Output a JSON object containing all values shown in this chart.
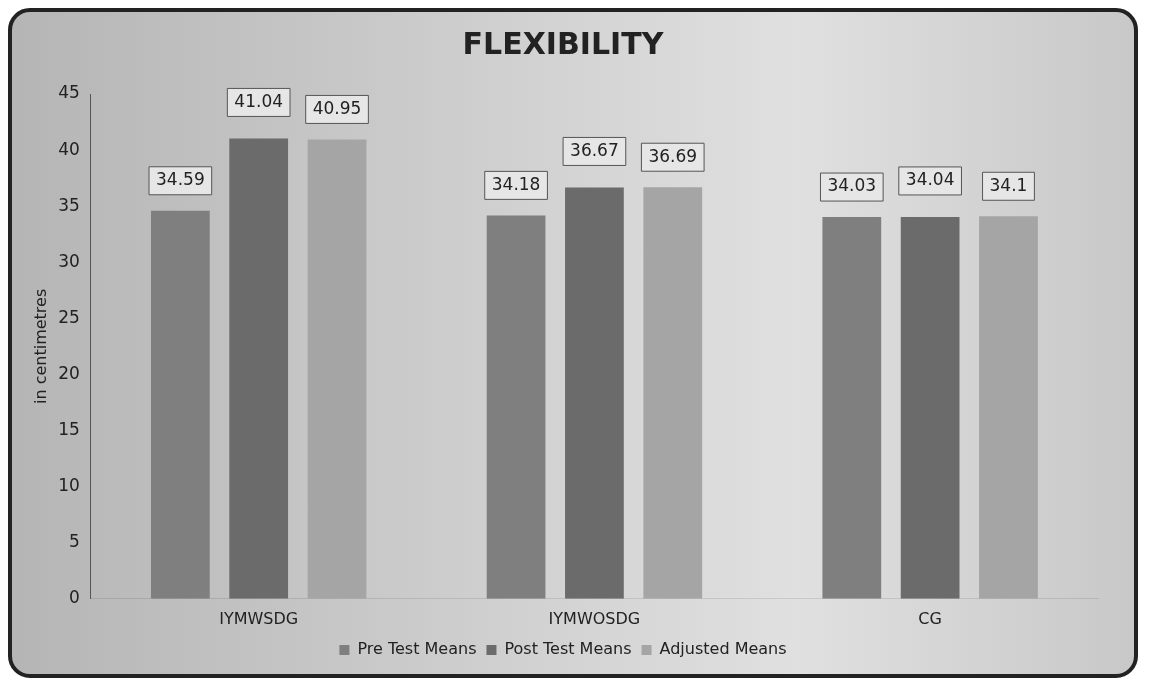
{
  "chart_data": {
    "type": "bar",
    "title": "FLEXIBILITY",
    "ylabel": "in centimetres",
    "categories": [
      "IYMWSDG",
      "IYMWOSDG",
      "CG"
    ],
    "series": [
      {
        "name": "Pre Test Means",
        "color": "#7f7f7f",
        "values": [
          34.59,
          34.18,
          34.03
        ]
      },
      {
        "name": "Post Test Means",
        "color": "#6b6b6b",
        "values": [
          41.04,
          36.67,
          34.04
        ]
      },
      {
        "name": "Adjusted Means",
        "color": "#a5a5a5",
        "values": [
          40.95,
          36.69,
          34.1
        ]
      }
    ],
    "ylim": [
      0,
      45
    ],
    "yticks": [
      0,
      5,
      10,
      15,
      20,
      25,
      30,
      35,
      40,
      45
    ],
    "grid": false,
    "legend": "bottom",
    "data_labels": true
  }
}
